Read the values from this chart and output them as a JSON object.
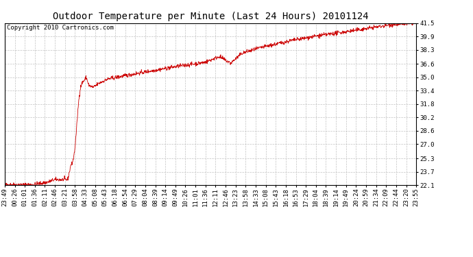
{
  "title": "Outdoor Temperature per Minute (Last 24 Hours) 20101124",
  "copyright": "Copyright 2010 Cartronics.com",
  "line_color": "#cc0000",
  "background_color": "#ffffff",
  "grid_color": "#bbbbbb",
  "border_color": "#000000",
  "yticks": [
    22.1,
    23.7,
    25.3,
    27.0,
    28.6,
    30.2,
    31.8,
    33.4,
    35.0,
    36.6,
    38.3,
    39.9,
    41.5
  ],
  "ymin": 22.1,
  "ymax": 41.5,
  "xtick_labels": [
    "23:49",
    "00:26",
    "01:01",
    "01:36",
    "02:11",
    "02:46",
    "03:21",
    "03:58",
    "04:33",
    "05:08",
    "05:43",
    "06:18",
    "06:54",
    "07:29",
    "08:04",
    "08:39",
    "09:14",
    "09:49",
    "10:26",
    "11:01",
    "11:36",
    "12:11",
    "12:46",
    "13:23",
    "13:58",
    "14:33",
    "15:08",
    "15:43",
    "16:18",
    "16:53",
    "17:29",
    "18:04",
    "18:39",
    "19:14",
    "19:49",
    "20:24",
    "20:59",
    "21:34",
    "22:09",
    "22:44",
    "23:20",
    "23:55"
  ],
  "title_fontsize": 10,
  "copyright_fontsize": 6.5,
  "tick_fontsize": 6.5
}
